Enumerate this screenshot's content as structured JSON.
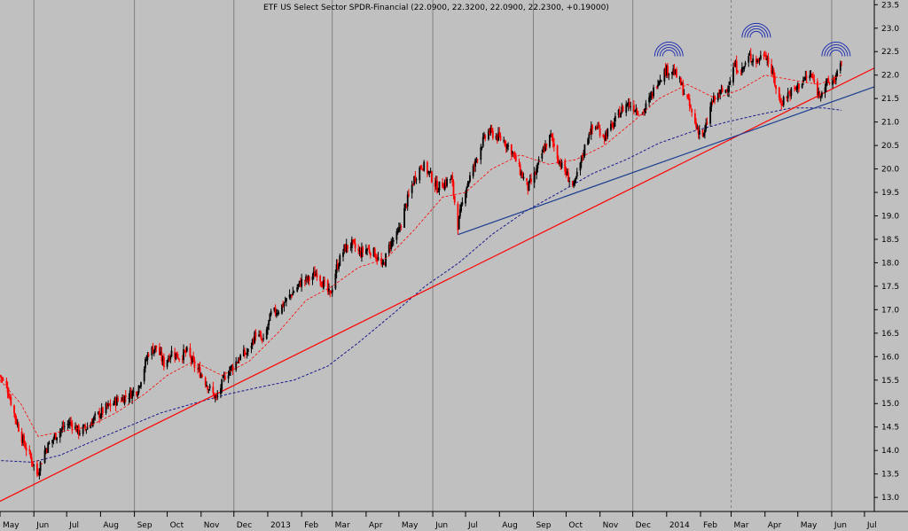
{
  "chart_data": {
    "type": "candlestick",
    "title": "ETF US Select Sector SPDR-Financial (22.0900, 22.3200, 22.0900, 22.2300, +0.19000)",
    "xlabel": "",
    "ylabel": "",
    "ylim": [
      12.7,
      23.6
    ],
    "y_ticks": [
      "13.0",
      "13.5",
      "14.0",
      "14.5",
      "15.0",
      "15.5",
      "16.0",
      "16.5",
      "17.0",
      "17.5",
      "18.0",
      "18.5",
      "19.0",
      "19.5",
      "20.0",
      "20.5",
      "21.0",
      "21.5",
      "22.0",
      "22.5",
      "23.0",
      "23.5"
    ],
    "x_range": [
      "2012-05-01",
      "2014-07-10"
    ],
    "month_ticks": [
      {
        "date": "2012-05-01",
        "label": "May"
      },
      {
        "date": "2012-06-01",
        "label": "Jun"
      },
      {
        "date": "2012-07-01",
        "label": "Jul"
      },
      {
        "date": "2012-08-01",
        "label": "Aug"
      },
      {
        "date": "2012-09-01",
        "label": "Sep"
      },
      {
        "date": "2012-10-01",
        "label": "Oct"
      },
      {
        "date": "2012-11-01",
        "label": "Nov"
      },
      {
        "date": "2012-12-01",
        "label": "Dec"
      },
      {
        "date": "2013-01-01",
        "label": "2013"
      },
      {
        "date": "2013-02-01",
        "label": "Feb"
      },
      {
        "date": "2013-03-01",
        "label": "Mar"
      },
      {
        "date": "2013-04-01",
        "label": "Apr"
      },
      {
        "date": "2013-05-01",
        "label": "May"
      },
      {
        "date": "2013-06-01",
        "label": "Jun"
      },
      {
        "date": "2013-07-01",
        "label": "Jul"
      },
      {
        "date": "2013-08-01",
        "label": "Aug"
      },
      {
        "date": "2013-09-01",
        "label": "Sep"
      },
      {
        "date": "2013-10-01",
        "label": "Oct"
      },
      {
        "date": "2013-11-01",
        "label": "Nov"
      },
      {
        "date": "2013-12-01",
        "label": "Dec"
      },
      {
        "date": "2014-01-01",
        "label": "2014"
      },
      {
        "date": "2014-02-01",
        "label": "Feb"
      },
      {
        "date": "2014-03-01",
        "label": "Mar"
      },
      {
        "date": "2014-04-01",
        "label": "Apr"
      },
      {
        "date": "2014-05-01",
        "label": "May"
      },
      {
        "date": "2014-06-01",
        "label": "Jun"
      },
      {
        "date": "2014-07-01",
        "label": "Jul"
      }
    ],
    "price_path": [
      [
        "2012-05-01",
        15.6
      ],
      [
        "2012-05-08",
        15.3
      ],
      [
        "2012-05-15",
        14.7
      ],
      [
        "2012-05-22",
        14.2
      ],
      [
        "2012-05-30",
        13.8
      ],
      [
        "2012-06-04",
        13.5
      ],
      [
        "2012-06-11",
        14.0
      ],
      [
        "2012-06-20",
        14.3
      ],
      [
        "2012-06-28",
        14.5
      ],
      [
        "2012-07-05",
        14.6
      ],
      [
        "2012-07-12",
        14.4
      ],
      [
        "2012-07-20",
        14.5
      ],
      [
        "2012-07-27",
        14.7
      ],
      [
        "2012-08-06",
        14.9
      ],
      [
        "2012-08-15",
        15.05
      ],
      [
        "2012-08-24",
        15.15
      ],
      [
        "2012-09-04",
        15.3
      ],
      [
        "2012-09-14",
        16.1
      ],
      [
        "2012-09-21",
        16.2
      ],
      [
        "2012-09-28",
        15.85
      ],
      [
        "2012-10-05",
        16.1
      ],
      [
        "2012-10-12",
        16.0
      ],
      [
        "2012-10-19",
        16.1
      ],
      [
        "2012-10-26",
        15.8
      ],
      [
        "2012-11-02",
        15.6
      ],
      [
        "2012-11-09",
        15.3
      ],
      [
        "2012-11-15",
        15.1
      ],
      [
        "2012-11-23",
        15.6
      ],
      [
        "2012-11-30",
        15.8
      ],
      [
        "2012-12-07",
        16.0
      ],
      [
        "2012-12-14",
        16.1
      ],
      [
        "2012-12-21",
        16.5
      ],
      [
        "2012-12-28",
        16.3
      ],
      [
        "2013-01-04",
        16.9
      ],
      [
        "2013-01-11",
        17.0
      ],
      [
        "2013-01-18",
        17.2
      ],
      [
        "2013-01-25",
        17.4
      ],
      [
        "2013-02-01",
        17.6
      ],
      [
        "2013-02-08",
        17.65
      ],
      [
        "2013-02-15",
        17.8
      ],
      [
        "2013-02-22",
        17.5
      ],
      [
        "2013-02-27",
        17.3
      ],
      [
        "2013-03-05",
        17.9
      ],
      [
        "2013-03-12",
        18.3
      ],
      [
        "2013-03-19",
        18.4
      ],
      [
        "2013-03-26",
        18.2
      ],
      [
        "2013-04-02",
        18.3
      ],
      [
        "2013-04-09",
        18.2
      ],
      [
        "2013-04-16",
        17.9
      ],
      [
        "2013-04-23",
        18.4
      ],
      [
        "2013-04-30",
        18.6
      ],
      [
        "2013-05-07",
        19.2
      ],
      [
        "2013-05-15",
        19.8
      ],
      [
        "2013-05-22",
        20.1
      ],
      [
        "2013-05-29",
        19.9
      ],
      [
        "2013-06-05",
        19.6
      ],
      [
        "2013-06-12",
        19.7
      ],
      [
        "2013-06-18",
        19.8
      ],
      [
        "2013-06-24",
        18.8
      ],
      [
        "2013-07-01",
        19.6
      ],
      [
        "2013-07-08",
        20.0
      ],
      [
        "2013-07-15",
        20.5
      ],
      [
        "2013-07-22",
        20.8
      ],
      [
        "2013-07-29",
        20.7
      ],
      [
        "2013-08-05",
        20.6
      ],
      [
        "2013-08-12",
        20.4
      ],
      [
        "2013-08-19",
        20.0
      ],
      [
        "2013-08-27",
        19.6
      ],
      [
        "2013-09-03",
        19.9
      ],
      [
        "2013-09-10",
        20.4
      ],
      [
        "2013-09-17",
        20.7
      ],
      [
        "2013-09-24",
        20.2
      ],
      [
        "2013-10-01",
        19.9
      ],
      [
        "2013-10-08",
        19.6
      ],
      [
        "2013-10-15",
        20.2
      ],
      [
        "2013-10-22",
        20.8
      ],
      [
        "2013-10-29",
        20.9
      ],
      [
        "2013-11-05",
        20.7
      ],
      [
        "2013-11-12",
        20.9
      ],
      [
        "2013-11-19",
        21.2
      ],
      [
        "2013-11-26",
        21.4
      ],
      [
        "2013-12-03",
        21.3
      ],
      [
        "2013-12-10",
        21.2
      ],
      [
        "2013-12-17",
        21.5
      ],
      [
        "2013-12-24",
        21.9
      ],
      [
        "2013-12-31",
        22.1
      ],
      [
        "2014-01-07",
        22.1
      ],
      [
        "2014-01-14",
        21.8
      ],
      [
        "2014-01-21",
        21.4
      ],
      [
        "2014-01-28",
        20.9
      ],
      [
        "2014-02-04",
        20.7
      ],
      [
        "2014-02-11",
        21.4
      ],
      [
        "2014-02-18",
        21.6
      ],
      [
        "2014-02-25",
        21.7
      ],
      [
        "2014-03-04",
        22.2
      ],
      [
        "2014-03-11",
        22.1
      ],
      [
        "2014-03-18",
        22.4
      ],
      [
        "2014-03-25",
        22.3
      ],
      [
        "2014-04-01",
        22.5
      ],
      [
        "2014-04-08",
        22.0
      ],
      [
        "2014-04-15",
        21.4
      ],
      [
        "2014-04-22",
        21.6
      ],
      [
        "2014-04-29",
        21.7
      ],
      [
        "2014-05-06",
        21.9
      ],
      [
        "2014-05-13",
        22.0
      ],
      [
        "2014-05-20",
        21.6
      ],
      [
        "2014-05-27",
        21.8
      ],
      [
        "2014-06-03",
        21.9
      ],
      [
        "2014-06-10",
        22.2
      ]
    ],
    "ma_short": [
      [
        "2012-05-01",
        15.5
      ],
      [
        "2012-05-20",
        15.0
      ],
      [
        "2012-06-05",
        14.3
      ],
      [
        "2012-06-25",
        14.4
      ],
      [
        "2012-07-20",
        14.5
      ],
      [
        "2012-08-15",
        14.8
      ],
      [
        "2012-09-10",
        15.2
      ],
      [
        "2012-10-01",
        15.6
      ],
      [
        "2012-10-25",
        15.9
      ],
      [
        "2012-11-20",
        15.6
      ],
      [
        "2012-12-15",
        15.9
      ],
      [
        "2013-01-10",
        16.5
      ],
      [
        "2013-02-05",
        17.2
      ],
      [
        "2013-03-01",
        17.5
      ],
      [
        "2013-03-25",
        17.9
      ],
      [
        "2013-04-20",
        18.1
      ],
      [
        "2013-05-15",
        18.7
      ],
      [
        "2013-06-10",
        19.4
      ],
      [
        "2013-07-01",
        19.5
      ],
      [
        "2013-07-25",
        20.0
      ],
      [
        "2013-08-20",
        20.3
      ],
      [
        "2013-09-15",
        20.1
      ],
      [
        "2013-10-10",
        20.2
      ],
      [
        "2013-11-05",
        20.5
      ],
      [
        "2013-12-01",
        21.0
      ],
      [
        "2013-12-25",
        21.5
      ],
      [
        "2014-01-20",
        21.8
      ],
      [
        "2014-02-15",
        21.5
      ],
      [
        "2014-03-10",
        21.7
      ],
      [
        "2014-04-01",
        22.0
      ],
      [
        "2014-04-25",
        21.9
      ],
      [
        "2014-05-20",
        21.8
      ],
      [
        "2014-06-10",
        22.0
      ]
    ],
    "ma_long": [
      [
        "2012-04-20",
        13.8
      ],
      [
        "2012-05-30",
        13.75
      ],
      [
        "2012-06-25",
        13.9
      ],
      [
        "2012-07-25",
        14.2
      ],
      [
        "2012-08-25",
        14.5
      ],
      [
        "2012-09-25",
        14.8
      ],
      [
        "2012-10-25",
        15.0
      ],
      [
        "2012-11-25",
        15.2
      ],
      [
        "2012-12-25",
        15.35
      ],
      [
        "2013-01-25",
        15.5
      ],
      [
        "2013-02-25",
        15.8
      ],
      [
        "2013-03-25",
        16.3
      ],
      [
        "2013-04-25",
        16.9
      ],
      [
        "2013-05-25",
        17.5
      ],
      [
        "2013-06-25",
        18.0
      ],
      [
        "2013-07-25",
        18.6
      ],
      [
        "2013-08-25",
        19.1
      ],
      [
        "2013-09-25",
        19.5
      ],
      [
        "2013-10-25",
        19.9
      ],
      [
        "2013-11-25",
        20.2
      ],
      [
        "2013-12-25",
        20.55
      ],
      [
        "2014-01-25",
        20.8
      ],
      [
        "2014-02-25",
        21.0
      ],
      [
        "2014-03-25",
        21.15
      ],
      [
        "2014-04-25",
        21.3
      ],
      [
        "2014-05-25",
        21.3
      ],
      [
        "2014-06-10",
        21.25
      ]
    ],
    "trendlines": [
      {
        "color": "#ff0000",
        "from": [
          "2012-04-25",
          12.85
        ],
        "to": [
          "2014-07-10",
          22.15
        ]
      },
      {
        "color": "#1a3d8f",
        "from": [
          "2013-06-24",
          18.6
        ],
        "to": [
          "2014-07-10",
          21.75
        ]
      }
    ],
    "arc_groups": [
      {
        "date": "2014-01-03",
        "base": 22.4
      },
      {
        "date": "2014-03-24",
        "base": 22.8
      },
      {
        "date": "2014-06-05",
        "base": 22.4
      }
    ],
    "colors": {
      "background": "#c0c0c0",
      "up_candle": "#000000",
      "down_candle": "#ff0000",
      "ma_short": "#ff0000",
      "ma_long": "#1a1a8c",
      "gridline": "#808080",
      "arc": "#1f2fb0"
    }
  }
}
